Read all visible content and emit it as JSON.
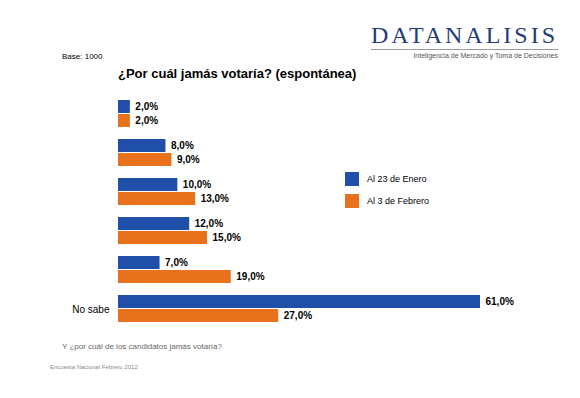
{
  "chart_data": {
    "type": "bar",
    "orientation": "horizontal",
    "source": "DATANALISIS",
    "source_subtitle": "Inteligencia de Mercado y Toma de Decisiones",
    "note": "Base: 1000",
    "title": "¿Por cuál jamás votaría? (espontánea)",
    "caption": "Y ¿por cuál de los candidatos jamás votaría?",
    "footer": "Encuesta Nacional Febrero 2012",
    "categories": [
      null,
      null,
      null,
      null,
      null,
      "No sabe"
    ],
    "series": [
      {
        "name": "Al 23 de Enero",
        "color": "#1f4fa8",
        "values": [
          2,
          8,
          10,
          12,
          7,
          61
        ],
        "value_labels": [
          "2,0%",
          "8,0%",
          "10,0%",
          "12,0%",
          "7,0%",
          "61,0%"
        ]
      },
      {
        "name": "Al 3 de Febrero",
        "color": "#e8721c",
        "values": [
          2,
          9,
          13,
          15,
          19,
          27
        ],
        "value_labels": [
          "2,0%",
          "9,0%",
          "13,0%",
          "15,0%",
          "19,0%",
          "27,0%"
        ]
      }
    ],
    "data_labels": true,
    "legend": "right",
    "tick_labels": "y",
    "grid": false
  }
}
